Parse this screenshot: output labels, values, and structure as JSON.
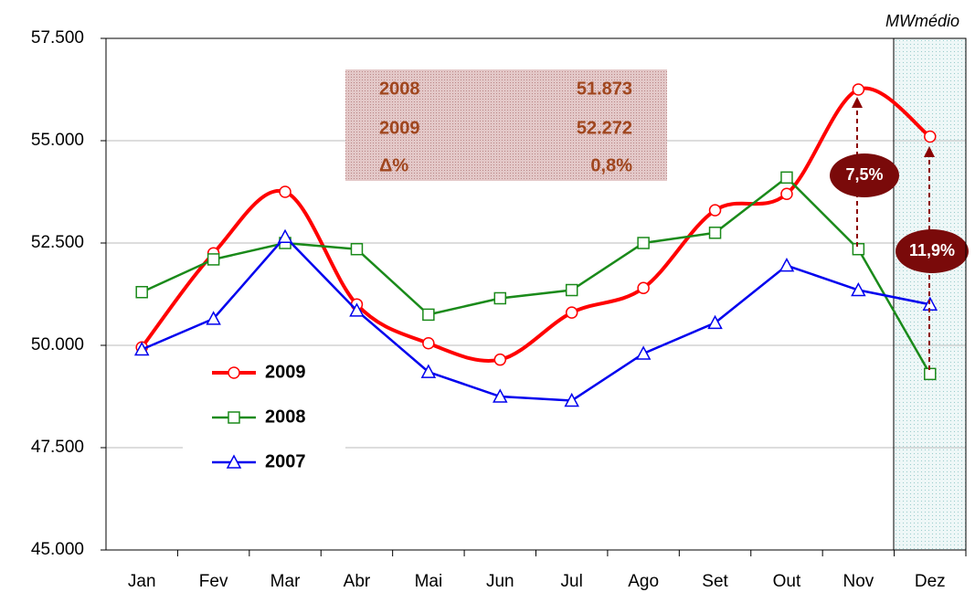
{
  "chart_data": {
    "type": "line",
    "unit_label": "MWmédio",
    "categories": [
      "Jan",
      "Fev",
      "Mar",
      "Abr",
      "Mai",
      "Jun",
      "Jul",
      "Ago",
      "Set",
      "Out",
      "Nov",
      "Dez"
    ],
    "series": [
      {
        "name": "2009",
        "color": "#ff0000",
        "marker": "circle",
        "values": [
          49950,
          52250,
          53750,
          51000,
          50050,
          49650,
          50800,
          51400,
          53300,
          53700,
          56250,
          55100
        ]
      },
      {
        "name": "2008",
        "color": "#1a8a1a",
        "marker": "square",
        "values": [
          51300,
          52100,
          52500,
          52350,
          50750,
          51150,
          51350,
          52500,
          52750,
          54100,
          52350,
          49300
        ]
      },
      {
        "name": "2007",
        "color": "#0000ee",
        "marker": "triangle",
        "values": [
          49900,
          50650,
          52650,
          50850,
          49350,
          48750,
          48650,
          49800,
          50550,
          51950,
          51350,
          51000
        ]
      }
    ],
    "ylim": [
      45000,
      57500
    ],
    "yticks": [
      {
        "value": 45000,
        "label": "45.000"
      },
      {
        "value": 47500,
        "label": "47.500"
      },
      {
        "value": 50000,
        "label": "50.000"
      },
      {
        "value": 52500,
        "label": "52.500"
      },
      {
        "value": 55000,
        "label": "55.000"
      },
      {
        "value": 57500,
        "label": "57.500"
      }
    ],
    "grid": true,
    "summary_table": [
      [
        "2008",
        "51.873"
      ],
      [
        "2009",
        "52.272"
      ],
      [
        "Δ%",
        "0,8%"
      ]
    ],
    "annotations": [
      "7,5%",
      "11,9%"
    ]
  }
}
